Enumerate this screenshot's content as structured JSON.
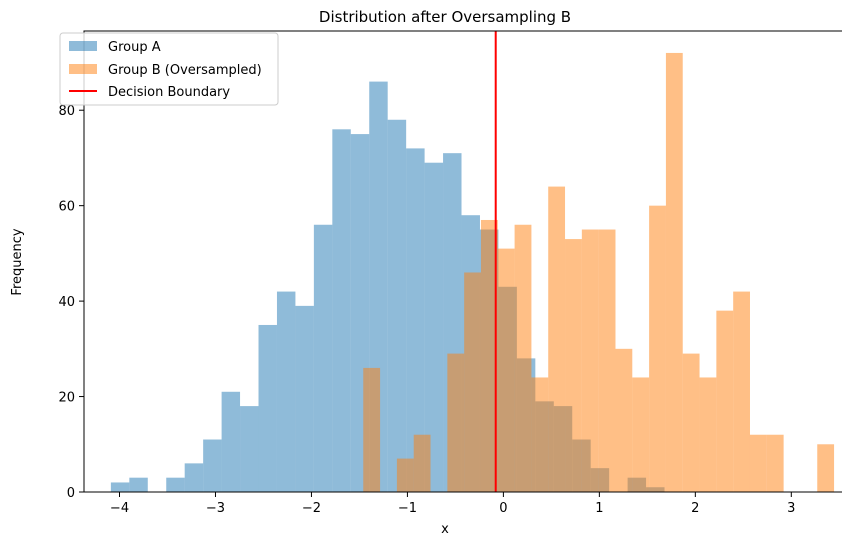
{
  "chart_data": {
    "type": "bar",
    "title": "Distribution after Oversampling B",
    "xlabel": "x",
    "ylabel": "Frequency",
    "xlim": [
      -4.37,
      3.57
    ],
    "ylim": [
      0,
      96.6
    ],
    "grid": false,
    "legend_position": "top-left",
    "xticks": [
      -4,
      -3,
      -2,
      -1,
      0,
      1,
      2,
      3
    ],
    "xtick_labels": [
      "−4",
      "−3",
      "−2",
      "−1",
      "0",
      "1",
      "2",
      "3"
    ],
    "yticks": [
      0,
      20,
      40,
      60,
      80
    ],
    "ytick_labels": [
      "0",
      "20",
      "40",
      "60",
      "80"
    ],
    "series": [
      {
        "name": "Group A",
        "color": "#1f77b4",
        "alpha": 0.5,
        "bins_start": -4.09,
        "bin_width": 0.1923,
        "values": [
          2,
          3,
          0,
          3,
          6,
          11,
          21,
          18,
          35,
          42,
          39,
          56,
          76,
          75,
          86,
          78,
          72,
          69,
          71,
          58,
          55,
          43,
          28,
          19,
          18,
          11,
          5,
          0,
          3,
          1
        ]
      },
      {
        "name": "Group B (Oversampled)",
        "color": "#ff7f0e",
        "alpha": 0.5,
        "bins_start": -1.46,
        "bin_width": 0.1752,
        "values": [
          26,
          0,
          7,
          12,
          0,
          29,
          46,
          57,
          51,
          56,
          24,
          64,
          53,
          55,
          55,
          30,
          24,
          60,
          92,
          29,
          24,
          38,
          42,
          12,
          12,
          0,
          0,
          10
        ]
      }
    ],
    "reference_lines": [
      {
        "name": "Decision Boundary",
        "type": "vline",
        "x": -0.08,
        "color": "#ff0000"
      }
    ]
  }
}
